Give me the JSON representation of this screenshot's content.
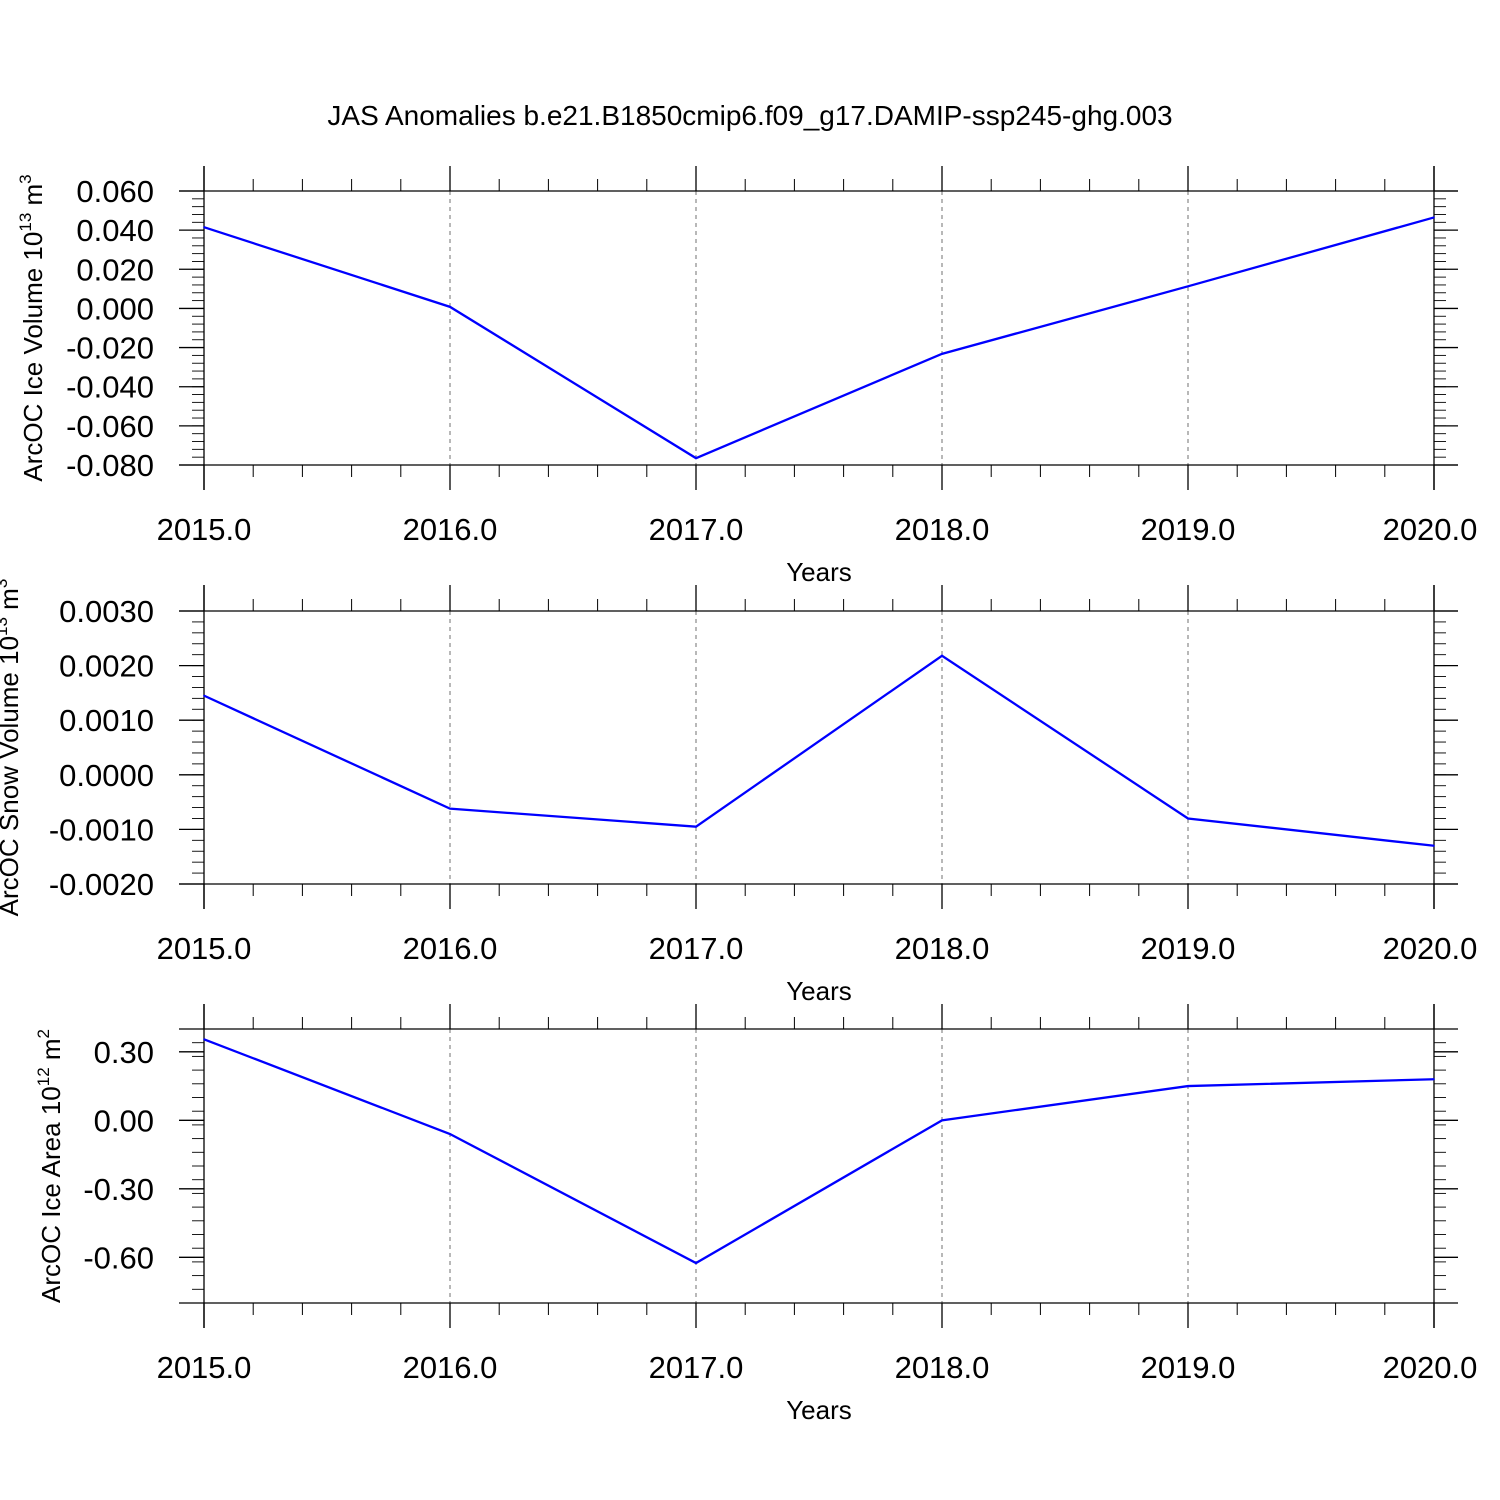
{
  "title": "JAS Anomalies b.e21.B1850cmip6.f09_g17.DAMIP-ssp245-ghg.003",
  "colors": {
    "line": "#0000ff",
    "axes": "#000000",
    "grid": "#888888"
  },
  "chart_data": [
    {
      "type": "line",
      "xlabel": "Years",
      "ylabel": {
        "main": "ArcOC Ice Volume 10",
        "exp": "13",
        "unit": " m",
        "unit_exp": "3"
      },
      "x": [
        2015,
        2016,
        2017,
        2018,
        2019,
        2020
      ],
      "xlim": [
        2015,
        2020
      ],
      "x_ticks": [
        "2015.0",
        "2016.0",
        "2017.0",
        "2018.0",
        "2019.0",
        "2020.0"
      ],
      "ylim": [
        -0.08,
        0.06
      ],
      "y_ticks": [
        {
          "value": 0.06,
          "label": "0.060"
        },
        {
          "value": 0.04,
          "label": "0.040"
        },
        {
          "value": 0.02,
          "label": "0.020"
        },
        {
          "value": 0.0,
          "label": "0.000"
        },
        {
          "value": -0.02,
          "label": "-0.020"
        },
        {
          "value": -0.04,
          "label": "-0.040"
        },
        {
          "value": -0.06,
          "label": "-0.060"
        },
        {
          "value": -0.08,
          "label": "-0.080"
        }
      ],
      "series": [
        {
          "values": [
            0.0415,
            0.0008,
            -0.0765,
            -0.0232,
            0.0113,
            0.0465
          ]
        }
      ],
      "grid": "vertical dashed at years"
    },
    {
      "type": "line",
      "xlabel": "Years",
      "ylabel": {
        "main": "ArcOC Snow Volume 10",
        "exp": "13",
        "unit": " m",
        "unit_exp": "3"
      },
      "x": [
        2015,
        2016,
        2017,
        2018,
        2019,
        2020
      ],
      "xlim": [
        2015,
        2020
      ],
      "x_ticks": [
        "2015.0",
        "2016.0",
        "2017.0",
        "2018.0",
        "2019.0",
        "2020.0"
      ],
      "ylim": [
        -0.002,
        0.003
      ],
      "y_ticks": [
        {
          "value": 0.003,
          "label": "0.0030"
        },
        {
          "value": 0.002,
          "label": "0.0020"
        },
        {
          "value": 0.001,
          "label": "0.0010"
        },
        {
          "value": 0.0,
          "label": "0.0000"
        },
        {
          "value": -0.001,
          "label": "-0.0010"
        },
        {
          "value": -0.002,
          "label": "-0.0020"
        }
      ],
      "series": [
        {
          "values": [
            0.00145,
            -0.00062,
            -0.00095,
            0.00218,
            -0.0008,
            -0.0013
          ]
        }
      ],
      "grid": "vertical dashed at years"
    },
    {
      "type": "line",
      "xlabel": "Years",
      "ylabel": {
        "main": "ArcOC Ice Area 10",
        "exp": "12",
        "unit": " m",
        "unit_exp": "2"
      },
      "x": [
        2015,
        2016,
        2017,
        2018,
        2019,
        2020
      ],
      "xlim": [
        2015,
        2020
      ],
      "x_ticks": [
        "2015.0",
        "2016.0",
        "2017.0",
        "2018.0",
        "2019.0",
        "2020.0"
      ],
      "ylim": [
        -0.8,
        0.4
      ],
      "y_ticks": [
        {
          "value": 0.3,
          "label": "0.30"
        },
        {
          "value": 0.0,
          "label": "0.00"
        },
        {
          "value": -0.3,
          "label": "-0.30"
        },
        {
          "value": -0.6,
          "label": "-0.60"
        }
      ],
      "series": [
        {
          "values": [
            0.355,
            -0.06,
            -0.625,
            0.0,
            0.15,
            0.18
          ]
        }
      ],
      "grid": "vertical dashed at years"
    }
  ]
}
